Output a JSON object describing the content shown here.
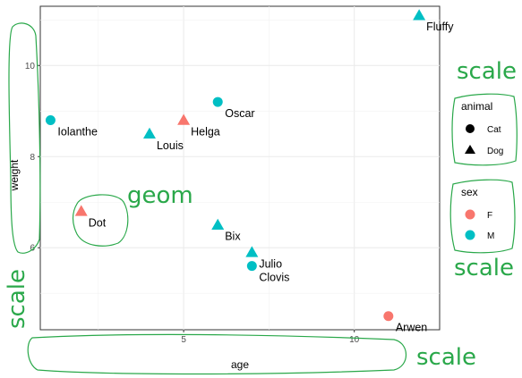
{
  "chart_data": {
    "type": "scatter",
    "xlabel": "age",
    "ylabel": "weight",
    "xlim": [
      0.8,
      12.5
    ],
    "ylim": [
      4.2,
      11.3
    ],
    "x_ticks": [
      5,
      10
    ],
    "y_ticks": [
      6,
      8,
      10
    ],
    "grid": true,
    "points": [
      {
        "name": "Fluffy",
        "x": 11.9,
        "y": 11.1,
        "animal": "Dog",
        "sex": "M"
      },
      {
        "name": "Iolanthe",
        "x": 1.1,
        "y": 8.8,
        "animal": "Cat",
        "sex": "M"
      },
      {
        "name": "Oscar",
        "x": 6.0,
        "y": 9.2,
        "animal": "Cat",
        "sex": "M"
      },
      {
        "name": "Helga",
        "x": 5.0,
        "y": 8.8,
        "animal": "Dog",
        "sex": "F"
      },
      {
        "name": "Louis",
        "x": 4.0,
        "y": 8.5,
        "animal": "Dog",
        "sex": "M"
      },
      {
        "name": "Dot",
        "x": 2.0,
        "y": 6.8,
        "animal": "Dog",
        "sex": "F"
      },
      {
        "name": "Bix",
        "x": 6.0,
        "y": 6.5,
        "animal": "Dog",
        "sex": "M"
      },
      {
        "name": "Julio",
        "x": 7.0,
        "y": 5.9,
        "animal": "Dog",
        "sex": "M"
      },
      {
        "name": "Clovis",
        "x": 7.0,
        "y": 5.6,
        "animal": "Cat",
        "sex": "M"
      },
      {
        "name": "Arwen",
        "x": 11.0,
        "y": 4.5,
        "animal": "Cat",
        "sex": "F"
      }
    ],
    "legends": [
      {
        "title": "animal",
        "placement": "right",
        "entries": [
          {
            "label": "Cat",
            "shape": "circle"
          },
          {
            "label": "Dog",
            "shape": "triangle"
          }
        ]
      },
      {
        "title": "sex",
        "placement": "right",
        "entries": [
          {
            "label": "F",
            "color": "#F8766D"
          },
          {
            "label": "M",
            "color": "#00BFC4"
          }
        ]
      }
    ],
    "colors": {
      "F": "#F8766D",
      "M": "#00BFC4",
      "key": "#000000"
    }
  },
  "annotations": {
    "geom": "geom",
    "scale_right_top": "scale",
    "scale_right_bottom": "scale",
    "scale_left_bottom": "scale",
    "scale_bottom": "scale",
    "color": "#2aa84a"
  }
}
